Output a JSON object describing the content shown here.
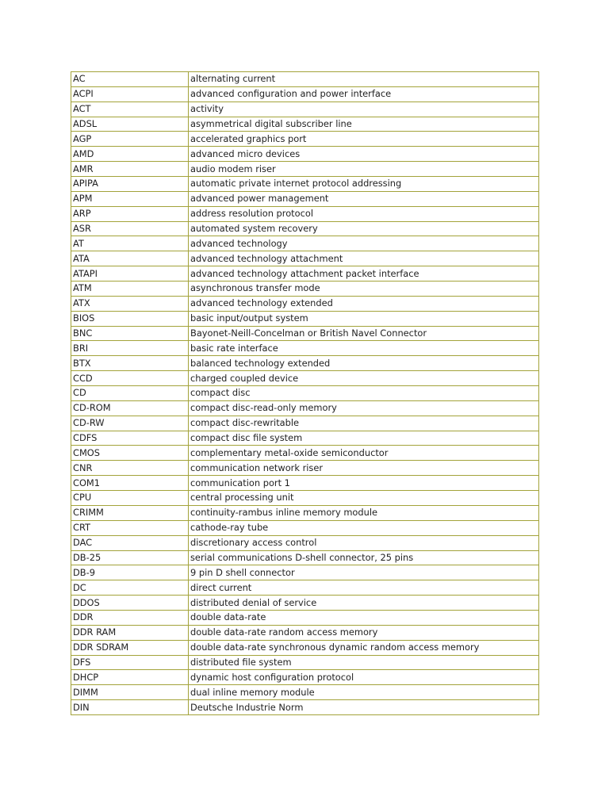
{
  "rows": [
    [
      "AC",
      "alternating current"
    ],
    [
      "ACPI",
      "advanced configuration and power interface"
    ],
    [
      "ACT",
      "activity"
    ],
    [
      "ADSL",
      "asymmetrical digital subscriber line"
    ],
    [
      "AGP",
      "accelerated graphics port"
    ],
    [
      "AMD",
      "advanced micro devices"
    ],
    [
      "AMR",
      "audio modem riser"
    ],
    [
      "APIPA",
      "automatic private internet protocol addressing"
    ],
    [
      "APM",
      "advanced power management"
    ],
    [
      "ARP",
      "address resolution protocol"
    ],
    [
      "ASR",
      "automated system recovery"
    ],
    [
      "AT",
      "advanced technology"
    ],
    [
      "ATA",
      "advanced technology attachment"
    ],
    [
      "ATAPI",
      "advanced technology attachment packet interface"
    ],
    [
      "ATM",
      "asynchronous transfer mode"
    ],
    [
      "ATX",
      "advanced technology extended"
    ],
    [
      "BIOS",
      "basic input/output system"
    ],
    [
      "BNC",
      "Bayonet-Neill-Concelman or British Navel Connector"
    ],
    [
      "BRI",
      "basic rate interface"
    ],
    [
      "BTX",
      "balanced technology extended"
    ],
    [
      "CCD",
      "charged coupled device"
    ],
    [
      "CD",
      "compact disc"
    ],
    [
      "CD-ROM",
      "compact disc-read-only memory"
    ],
    [
      "CD-RW",
      "compact disc-rewritable"
    ],
    [
      "CDFS",
      "compact disc file system"
    ],
    [
      "CMOS",
      "complementary metal-oxide semiconductor"
    ],
    [
      "CNR",
      "communication network riser"
    ],
    [
      "COM1",
      "communication port 1"
    ],
    [
      "CPU",
      "central processing unit"
    ],
    [
      "CRIMM",
      "continuity-rambus inline memory module"
    ],
    [
      "CRT",
      "cathode-ray tube"
    ],
    [
      "DAC",
      "discretionary access control"
    ],
    [
      "DB-25",
      "serial communications D-shell connector, 25 pins"
    ],
    [
      "DB-9",
      "9 pin D shell connector"
    ],
    [
      "DC",
      "direct current"
    ],
    [
      "DDOS",
      "distributed denial of service"
    ],
    [
      "DDR",
      "double data-rate"
    ],
    [
      "DDR RAM",
      "double data-rate random access memory"
    ],
    [
      "DDR SDRAM",
      "double data-rate synchronous dynamic random access memory"
    ],
    [
      "DFS",
      "distributed file system"
    ],
    [
      "DHCP",
      "dynamic host configuration protocol"
    ],
    [
      "DIMM",
      "dual inline memory module"
    ],
    [
      "DIN",
      "Deutsche Industrie Norm"
    ]
  ],
  "colors": {
    "border": "#a3a33a",
    "text": "#222222"
  }
}
